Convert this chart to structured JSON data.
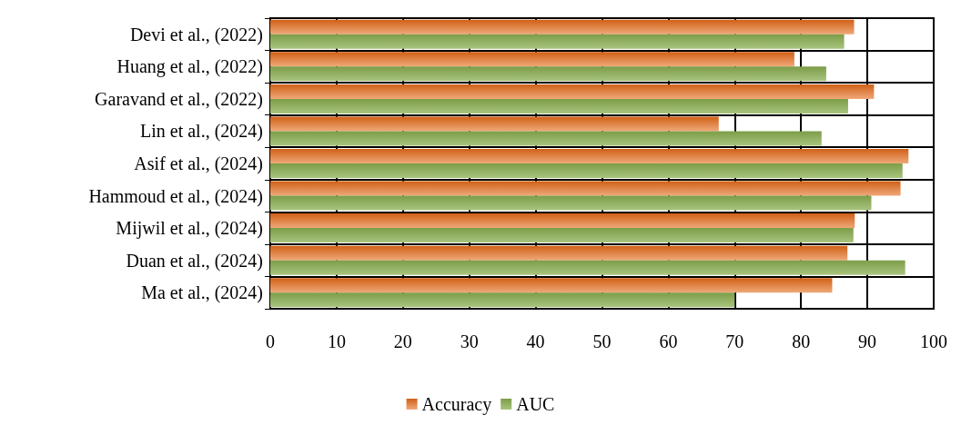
{
  "chart_data": {
    "type": "bar",
    "orientation": "horizontal",
    "categories": [
      "Devi et al., (2022)",
      "Huang et al., (2022)",
      "Garavand et al., (2022)",
      "Lin et al., (2024)",
      "Asif et al., (2024)",
      "Hammoud et al., (2024)",
      "Mijwil et al., (2024)",
      "Duan et al., (2024)",
      "Ma et al., (2024)"
    ],
    "series": [
      {
        "name": "Accuracy",
        "color": "#f0a878",
        "values": [
          88.0,
          79.0,
          91.0,
          67.6,
          96.2,
          95.0,
          88.1,
          87.0,
          84.7
        ]
      },
      {
        "name": "AUC",
        "color": "#a9c47f",
        "values": [
          86.5,
          83.8,
          87.1,
          83.1,
          95.3,
          90.6,
          87.9,
          95.7,
          70.0
        ]
      }
    ],
    "xlim": [
      0,
      100
    ],
    "xticks": [
      0,
      10,
      20,
      30,
      40,
      50,
      60,
      70,
      80,
      90,
      100
    ],
    "grid": true,
    "legend": "bottom"
  }
}
